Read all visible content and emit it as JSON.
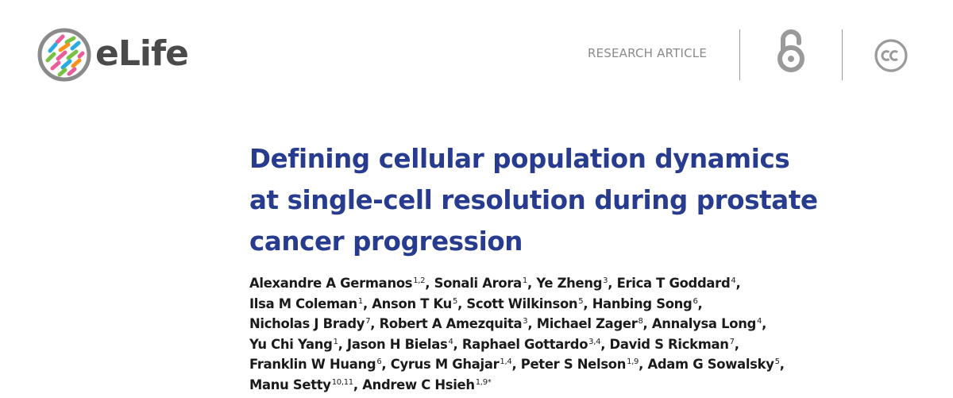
{
  "header": {
    "logo_text": "eLife",
    "article_type": "RESEARCH ARTICLE",
    "icons": [
      "elife-logo-icon",
      "open-access-icon",
      "creative-commons-icon"
    ]
  },
  "title_lines": [
    "Defining cellular population dynamics",
    "at single-cell resolution during prostate",
    "cancer progression"
  ],
  "authors_lines": [
    [
      {
        "name": "Alexandre A Germanos",
        "sup": "1,2",
        "sep": ", "
      },
      {
        "name": "Sonali Arora",
        "sup": "1",
        "sep": ", "
      },
      {
        "name": "Ye Zheng",
        "sup": "3",
        "sep": ", "
      },
      {
        "name": "Erica T Goddard",
        "sup": "4",
        "sep": ","
      }
    ],
    [
      {
        "name": "Ilsa M Coleman",
        "sup": "1",
        "sep": ", "
      },
      {
        "name": "Anson T Ku",
        "sup": "5",
        "sep": ", "
      },
      {
        "name": "Scott Wilkinson",
        "sup": "5",
        "sep": ", "
      },
      {
        "name": "Hanbing Song",
        "sup": "6",
        "sep": ","
      }
    ],
    [
      {
        "name": "Nicholas J Brady",
        "sup": "7",
        "sep": ", "
      },
      {
        "name": "Robert A Amezquita",
        "sup": "3",
        "sep": ", "
      },
      {
        "name": "Michael Zager",
        "sup": "8",
        "sep": ", "
      },
      {
        "name": "Annalysa Long",
        "sup": "4",
        "sep": ","
      }
    ],
    [
      {
        "name": "Yu Chi Yang",
        "sup": "1",
        "sep": ", "
      },
      {
        "name": "Jason H Bielas",
        "sup": "4",
        "sep": ", "
      },
      {
        "name": "Raphael Gottardo",
        "sup": "3,4",
        "sep": ", "
      },
      {
        "name": "David S Rickman",
        "sup": "7",
        "sep": ","
      }
    ],
    [
      {
        "name": "Franklin W Huang",
        "sup": "6",
        "sep": ", "
      },
      {
        "name": "Cyrus M Ghajar",
        "sup": "1,4",
        "sep": ", "
      },
      {
        "name": "Peter S Nelson",
        "sup": "1,9",
        "sep": ", "
      },
      {
        "name": "Adam G Sowalsky",
        "sup": "5",
        "sep": ","
      }
    ],
    [
      {
        "name": "Manu Setty",
        "sup": "10,11",
        "sep": ", "
      },
      {
        "name": "Andrew C Hsieh",
        "sup": "1,9*",
        "sep": ""
      }
    ]
  ],
  "colors": {
    "title": "#273b8f",
    "logo_text": "#4a4a4a",
    "article_type": "#8a8a8a",
    "icons": "#9a9a9a"
  }
}
